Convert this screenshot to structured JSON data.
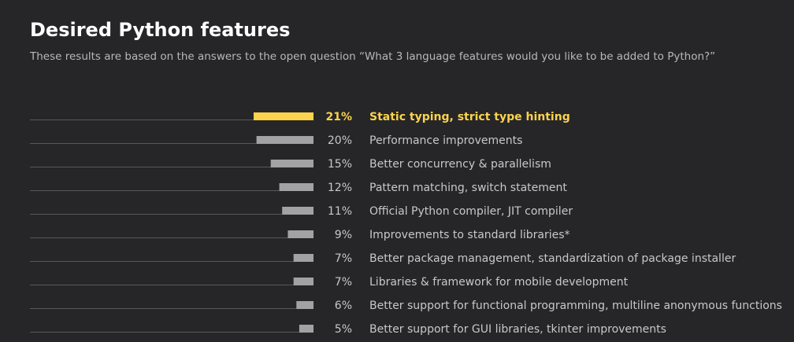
{
  "title": "Desired Python features",
  "subtitle": "These results are based on the answers to the open question “What 3 language features would you like to be added to Python?”",
  "colors": {
    "background": "#262628",
    "highlight": "#fcd34d",
    "bar": "#a2a2a4",
    "axis_line": "#57575a",
    "text": "#c8c8ca"
  },
  "chart_data": {
    "type": "bar",
    "orientation": "horizontal",
    "title": "Desired Python features",
    "subtitle": "These results are based on the answers to the open question “What 3 language features would you like to be added to Python?”",
    "categories": [
      "Static typing, strict type hinting",
      "Performance improvements",
      "Better concurrency & parallelism",
      "Pattern matching, switch statement",
      "Official Python compiler, JIT compiler",
      "Improvements to standard libraries*",
      "Better package management, standardization of package installer",
      "Libraries & framework for mobile development",
      "Better support for functional programming, multiline anonymous functions",
      "Better support for GUI libraries, tkinter improvements"
    ],
    "values": [
      21,
      20,
      15,
      12,
      11,
      9,
      7,
      7,
      6,
      5
    ],
    "value_labels": [
      "21%",
      "20%",
      "15%",
      "12%",
      "11%",
      "9%",
      "7%",
      "7%",
      "6%",
      "5%"
    ],
    "unit": "%",
    "highlighted_index": 0,
    "bar_direction": "right-to-left",
    "grid": false,
    "legend": "none"
  }
}
